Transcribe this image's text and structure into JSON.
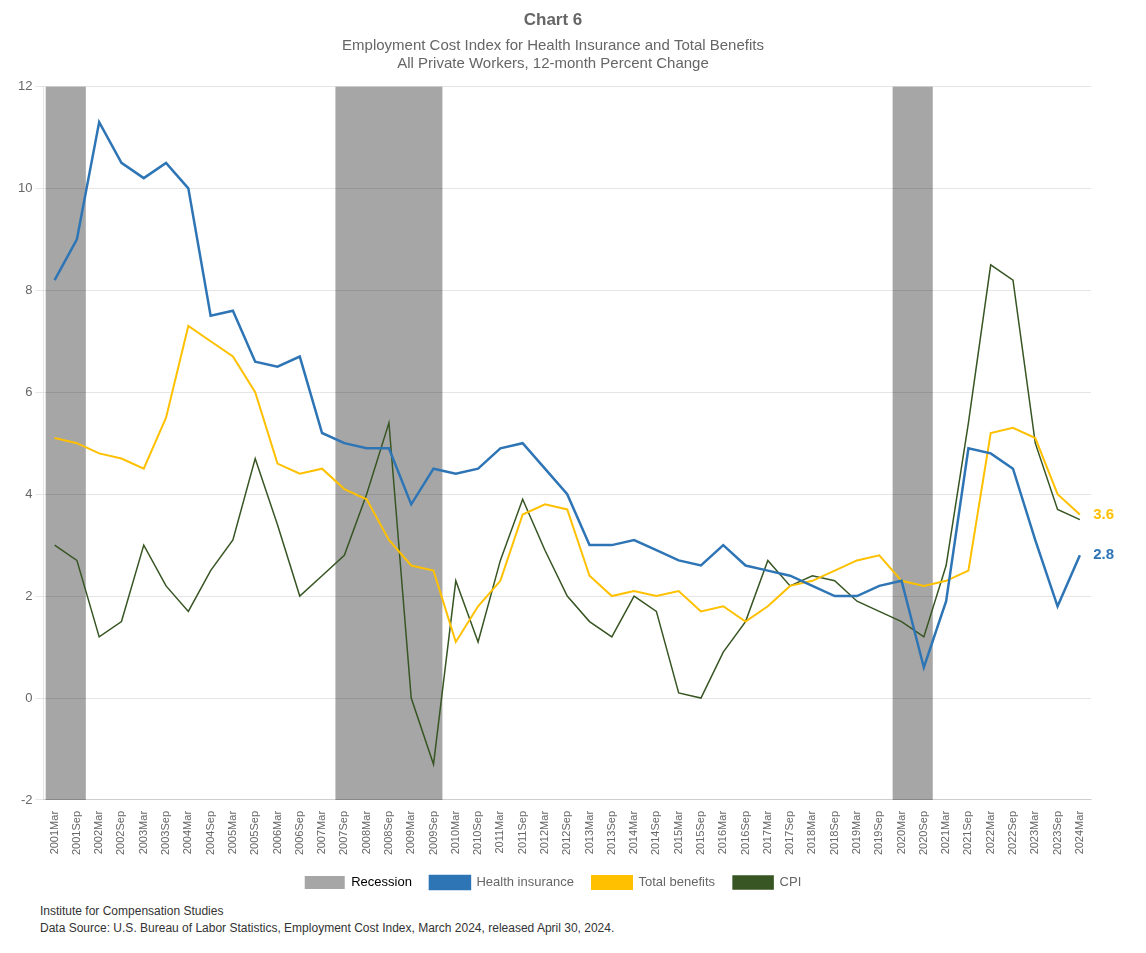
{
  "chart_data": {
    "type": "line",
    "title": "Chart 6",
    "subtitle": "Employment Cost Index for Health Insurance and Total Benefits\nAll Private Workers, 12-month Percent Change",
    "footnotes": [
      "Institute for Compensation Studies",
      "Data Source: U.S. Bureau of Labor Statistics, Employment Cost Index, March 2024, released April 30, 2024."
    ],
    "categories": [
      "2001Mar",
      "2001Sep",
      "2002Mar",
      "2002Sep",
      "2003Mar",
      "2003Sep",
      "2004Mar",
      "2004Sep",
      "2005Mar",
      "2005Sep",
      "2006Mar",
      "2006Sep",
      "2007Mar",
      "2007Sep",
      "2008Mar",
      "2008Sep",
      "2009Mar",
      "2009Sep",
      "2010Mar",
      "2010Sep",
      "2011Mar",
      "2011Sep",
      "2012Mar",
      "2012Sep",
      "2013Mar",
      "2013Sep",
      "2014Mar",
      "2014Sep",
      "2015Mar",
      "2015Sep",
      "2016Mar",
      "2016Sep",
      "2017Mar",
      "2017Sep",
      "2018Mar",
      "2018Sep",
      "2019Mar",
      "2019Sep",
      "2020Mar",
      "2020Sep",
      "2021Mar",
      "2021Sep",
      "2022Mar",
      "2022Sep",
      "2023Mar",
      "2023Sep",
      "2024Mar"
    ],
    "series": [
      {
        "name": "Health insurance",
        "color": "#2E75B6",
        "values": [
          8.2,
          9.0,
          11.3,
          10.5,
          10.2,
          10.5,
          10.0,
          7.5,
          7.6,
          6.6,
          6.5,
          6.7,
          5.2,
          5.0,
          4.9,
          4.9,
          3.8,
          4.5,
          4.4,
          4.5,
          4.9,
          5.0,
          4.5,
          4.0,
          3.0,
          3.0,
          3.1,
          2.9,
          2.7,
          2.6,
          3.0,
          2.6,
          2.5,
          2.4,
          2.2,
          2.0,
          2.0,
          2.2,
          2.3,
          0.6,
          1.9,
          4.9,
          4.8,
          4.5,
          3.1,
          1.8,
          2.8
        ]
      },
      {
        "name": "Total benefits",
        "color": "#FFC000",
        "values": [
          5.1,
          5.0,
          4.8,
          4.7,
          4.5,
          5.5,
          7.3,
          7.0,
          6.7,
          6.0,
          4.6,
          4.4,
          4.5,
          4.1,
          3.9,
          3.1,
          2.6,
          2.5,
          1.1,
          1.8,
          2.3,
          3.6,
          3.8,
          3.7,
          2.4,
          2.0,
          2.1,
          2.0,
          2.1,
          1.7,
          1.8,
          1.5,
          1.8,
          2.2,
          2.3,
          2.5,
          2.7,
          2.8,
          2.3,
          2.2,
          2.3,
          2.5,
          5.2,
          5.3,
          5.1,
          4.0,
          3.6
        ]
      },
      {
        "name": "CPI",
        "color": "#375623",
        "values": [
          3.0,
          2.7,
          1.2,
          1.5,
          3.0,
          2.2,
          1.7,
          2.5,
          3.1,
          4.7,
          3.4,
          2.0,
          2.4,
          2.8,
          4.0,
          5.4,
          0.0,
          -1.3,
          2.3,
          1.1,
          2.7,
          3.9,
          2.9,
          2.0,
          1.5,
          1.2,
          2.0,
          1.7,
          0.1,
          0.0,
          0.9,
          1.5,
          2.7,
          2.2,
          2.4,
          2.3,
          1.9,
          1.7,
          1.5,
          1.2,
          2.6,
          5.4,
          8.5,
          8.2,
          5.0,
          3.7,
          3.5
        ]
      }
    ],
    "shaded_periods": {
      "name": "Recession",
      "color": "#A6A6A6",
      "periods": [
        [
          "2001Mar",
          "2001Sep"
        ],
        [
          "2007Sep",
          "2009Sep"
        ],
        [
          "2020Mar",
          "2020Sep"
        ]
      ]
    },
    "annotations": [
      {
        "x": "2024Mar",
        "y": 3.6,
        "text": "3.6",
        "color": "#FFC000"
      },
      {
        "x": "2024Mar",
        "y": 2.8,
        "text": "2.8",
        "color": "#2E75B6"
      }
    ],
    "ylim": [
      -2,
      12
    ],
    "yticks": [
      -2,
      0,
      2,
      4,
      6,
      8,
      10,
      12
    ],
    "grid": "y",
    "legend": "bottom"
  }
}
